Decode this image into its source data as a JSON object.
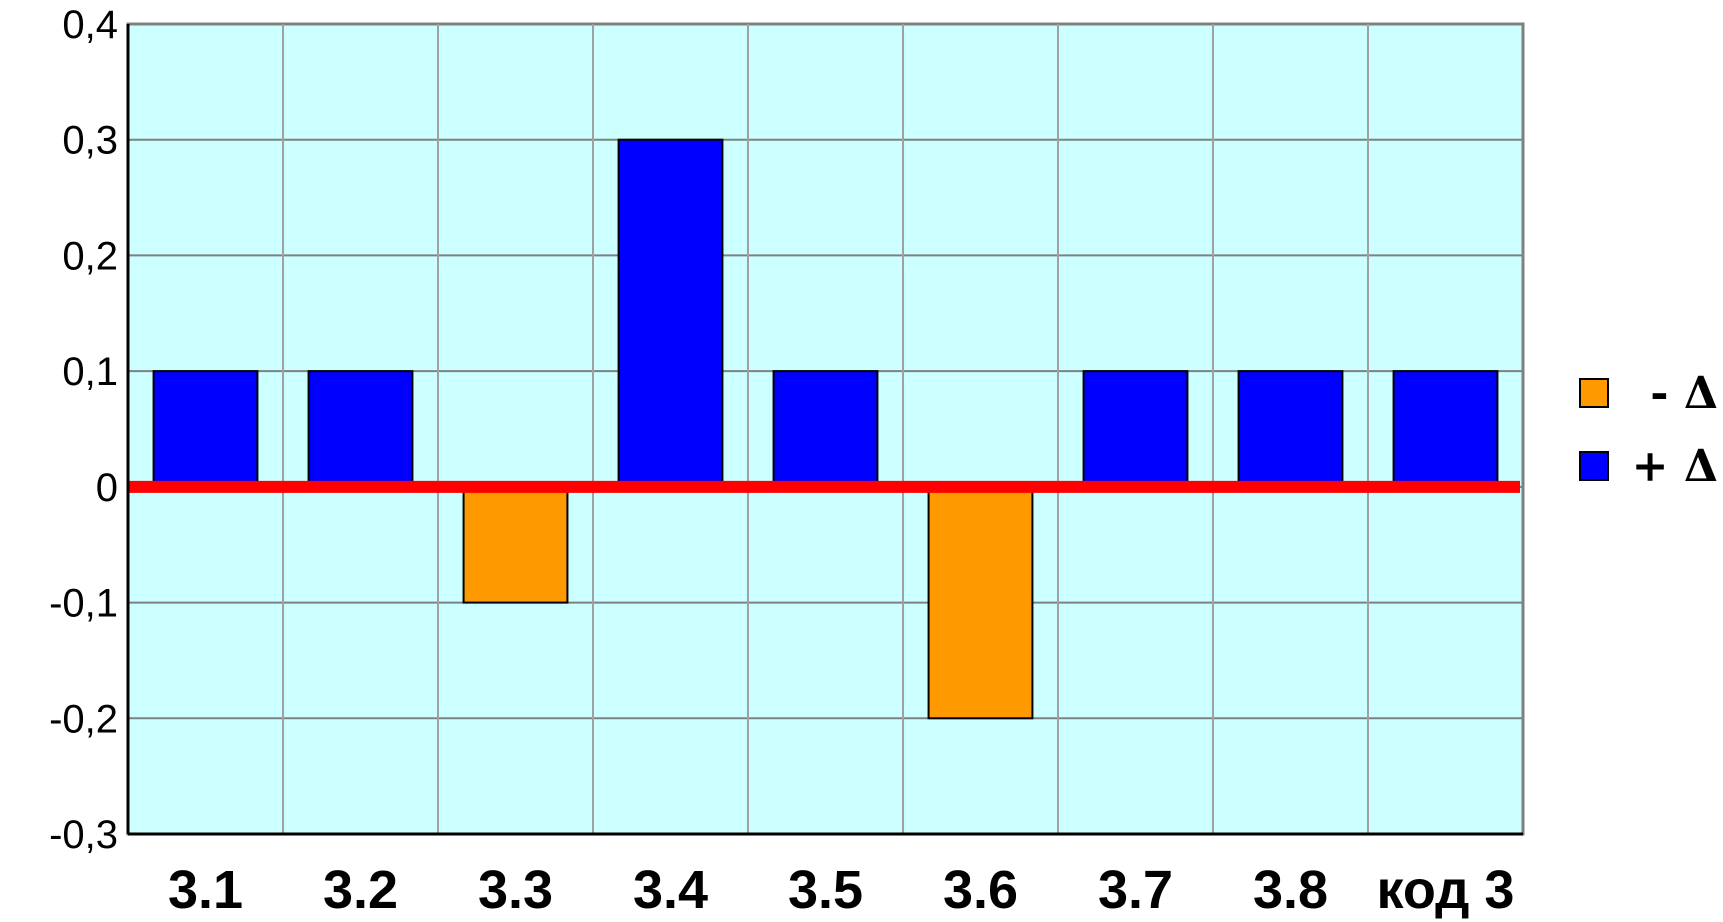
{
  "chart_data": {
    "type": "bar",
    "categories": [
      "3.1",
      "3.2",
      "3.3",
      "3.4",
      "3.5",
      "3.6",
      "3.7",
      "3.8",
      "код 3"
    ],
    "series": [
      {
        "name": "- Δ",
        "color": "#ff9900",
        "values": [
          0,
          0,
          -0.1,
          0,
          0,
          -0.2,
          0,
          0,
          0
        ]
      },
      {
        "name": "+ Δ",
        "color": "#0000ff",
        "values": [
          0.1,
          0.1,
          0,
          0.3,
          0.1,
          0,
          0.1,
          0.1,
          0.1
        ]
      }
    ],
    "y_ticks": [
      "0,4",
      "0,3",
      "0,2",
      "0,1",
      "0",
      "-0,1",
      "-0,2",
      "-0,3"
    ],
    "ylim": [
      -0.3,
      0.4
    ],
    "grid": true,
    "plot_background": "#ccffff",
    "zero_line_color": "#ff0000",
    "legend_placement": "right"
  }
}
